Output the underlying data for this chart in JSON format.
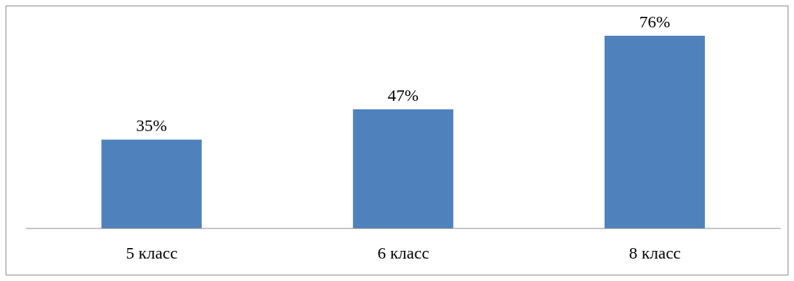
{
  "chart_data": {
    "type": "bar",
    "categories": [
      "5 класс",
      "6 класс",
      "8 класс"
    ],
    "values": [
      35,
      47,
      76
    ],
    "value_labels": [
      "35%",
      "47%",
      "76%"
    ],
    "color": "#4f81bd"
  }
}
